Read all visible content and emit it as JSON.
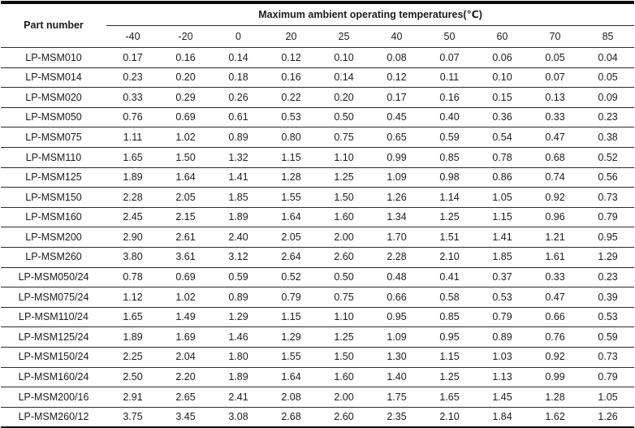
{
  "table": {
    "part_number_header": "Part number",
    "title": "Maximum ambient operating temperatures(℃)",
    "columns": [
      "-40",
      "-20",
      "0",
      "20",
      "25",
      "40",
      "50",
      "60",
      "70",
      "85"
    ],
    "rows": [
      {
        "part": "LP-MSM010",
        "values": [
          "0.17",
          "0.16",
          "0.14",
          "0.12",
          "0.10",
          "0.08",
          "0.07",
          "0.06",
          "0.05",
          "0.04"
        ]
      },
      {
        "part": "LP-MSM014",
        "values": [
          "0.23",
          "0.20",
          "0.18",
          "0.16",
          "0.14",
          "0.12",
          "0.11",
          "0.10",
          "0.07",
          "0.05"
        ]
      },
      {
        "part": "LP-MSM020",
        "values": [
          "0.33",
          "0.29",
          "0.26",
          "0.22",
          "0.20",
          "0.17",
          "0.16",
          "0.15",
          "0.13",
          "0.09"
        ]
      },
      {
        "part": "LP-MSM050",
        "values": [
          "0.76",
          "0.69",
          "0.61",
          "0.53",
          "0.50",
          "0.45",
          "0.40",
          "0.36",
          "0.33",
          "0.23"
        ]
      },
      {
        "part": "LP-MSM075",
        "values": [
          "1.11",
          "1.02",
          "0.89",
          "0.80",
          "0.75",
          "0.65",
          "0.59",
          "0.54",
          "0.47",
          "0.38"
        ]
      },
      {
        "part": "LP-MSM110",
        "values": [
          "1.65",
          "1.50",
          "1.32",
          "1.15",
          "1.10",
          "0.99",
          "0.85",
          "0.78",
          "0.68",
          "0.52"
        ]
      },
      {
        "part": "LP-MSM125",
        "values": [
          "1.89",
          "1.64",
          "1.41",
          "1.28",
          "1.25",
          "1.09",
          "0.98",
          "0.86",
          "0.74",
          "0.56"
        ]
      },
      {
        "part": "LP-MSM150",
        "values": [
          "2.28",
          "2.05",
          "1.85",
          "1.55",
          "1.50",
          "1.26",
          "1.14",
          "1.05",
          "0.92",
          "0.73"
        ]
      },
      {
        "part": "LP-MSM160",
        "values": [
          "2.45",
          "2.15",
          "1.89",
          "1.64",
          "1.60",
          "1.34",
          "1.25",
          "1.15",
          "0.96",
          "0.79"
        ]
      },
      {
        "part": "LP-MSM200",
        "values": [
          "2.90",
          "2.61",
          "2.40",
          "2.05",
          "2.00",
          "1.70",
          "1.51",
          "1.41",
          "1.21",
          "0.95"
        ]
      },
      {
        "part": "LP-MSM260",
        "values": [
          "3.80",
          "3.61",
          "3.12",
          "2.64",
          "2.60",
          "2.28",
          "2.10",
          "1.85",
          "1.61",
          "1.29"
        ]
      },
      {
        "part": "LP-MSM050/24",
        "values": [
          "0.78",
          "0.69",
          "0.59",
          "0.52",
          "0.50",
          "0.48",
          "0.41",
          "0.37",
          "0.33",
          "0.23"
        ]
      },
      {
        "part": "LP-MSM075/24",
        "values": [
          "1.12",
          "1.02",
          "0.89",
          "0.79",
          "0.75",
          "0.66",
          "0.58",
          "0.53",
          "0.47",
          "0.39"
        ]
      },
      {
        "part": "LP-MSM110/24",
        "values": [
          "1.65",
          "1.49",
          "1.29",
          "1.15",
          "1.10",
          "0.95",
          "0.85",
          "0.79",
          "0.66",
          "0.53"
        ]
      },
      {
        "part": "LP-MSM125/24",
        "values": [
          "1.89",
          "1.69",
          "1.46",
          "1.29",
          "1.25",
          "1.09",
          "0.95",
          "0.89",
          "0.76",
          "0.59"
        ]
      },
      {
        "part": "LP-MSM150/24",
        "values": [
          "2.25",
          "2.04",
          "1.80",
          "1.55",
          "1.50",
          "1.30",
          "1.15",
          "1.03",
          "0.92",
          "0.73"
        ]
      },
      {
        "part": "LP-MSM160/24",
        "values": [
          "2.50",
          "2.20",
          "1.89",
          "1.64",
          "1.60",
          "1.40",
          "1.25",
          "1.13",
          "0.99",
          "0.79"
        ]
      },
      {
        "part": "LP-MSM200/16",
        "values": [
          "2.91",
          "2.65",
          "2.41",
          "2.08",
          "2.00",
          "1.75",
          "1.65",
          "1.45",
          "1.28",
          "1.05"
        ]
      },
      {
        "part": "LP-MSM260/12",
        "values": [
          "3.75",
          "3.45",
          "3.08",
          "2.68",
          "2.60",
          "2.35",
          "2.10",
          "1.84",
          "1.62",
          "1.26"
        ]
      }
    ]
  }
}
